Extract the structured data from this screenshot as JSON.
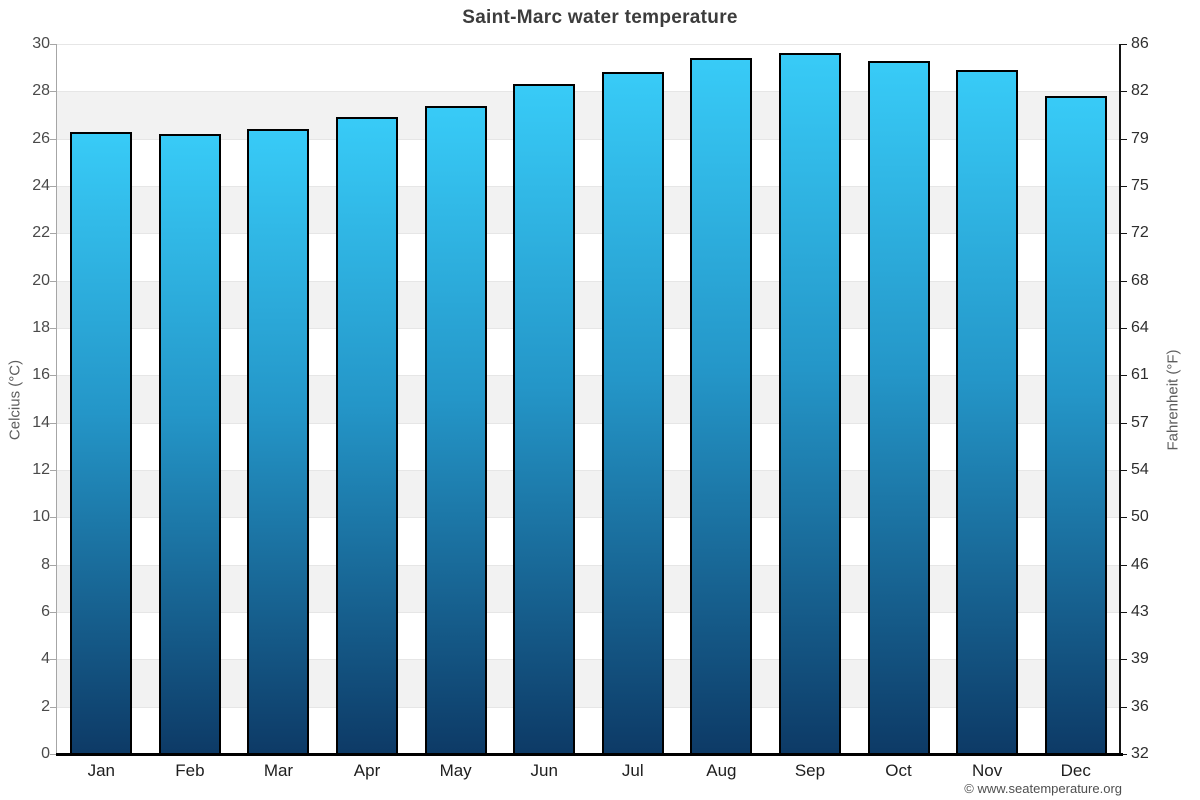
{
  "title": "Saint-Marc water temperature",
  "copyright": "© www.seatemperature.org",
  "chart_data": {
    "type": "bar",
    "title": "Saint-Marc water temperature",
    "categories": [
      "Jan",
      "Feb",
      "Mar",
      "Apr",
      "May",
      "Jun",
      "Jul",
      "Aug",
      "Sep",
      "Oct",
      "Nov",
      "Dec"
    ],
    "values": [
      26.3,
      26.2,
      26.4,
      26.9,
      27.4,
      28.3,
      28.8,
      29.4,
      29.6,
      29.3,
      28.9,
      27.8
    ],
    "series_unit": "°C",
    "ylabel_left": "Celcius (°C)",
    "ylabel_right": "Fahrenheit (°F)",
    "ylim": [
      0,
      30
    ],
    "ytick_step": 2,
    "celsius_ticks": [
      30,
      28,
      26,
      24,
      22,
      20,
      18,
      16,
      14,
      12,
      10,
      8,
      6,
      4,
      2,
      0
    ],
    "fahrenheit_ticks": [
      86,
      82,
      79,
      75,
      72,
      68,
      64,
      61,
      57,
      54,
      50,
      46,
      43,
      39,
      36,
      32
    ],
    "grid": "horizontal gridlines every 2°C with alternating white / light-gray bands",
    "legend": "none",
    "colors": {
      "bar_gradient_top": "#38cbf7",
      "bar_gradient_bottom": "#0d3a66",
      "bar_border": "#000000",
      "band_shaded": "#f2f2f2",
      "gridline": "#e6e6e6",
      "left_axis": "#a6a6a6",
      "right_axis": "#151515",
      "bottom_axis": "#000000",
      "title_text": "#3c3c3c"
    }
  }
}
